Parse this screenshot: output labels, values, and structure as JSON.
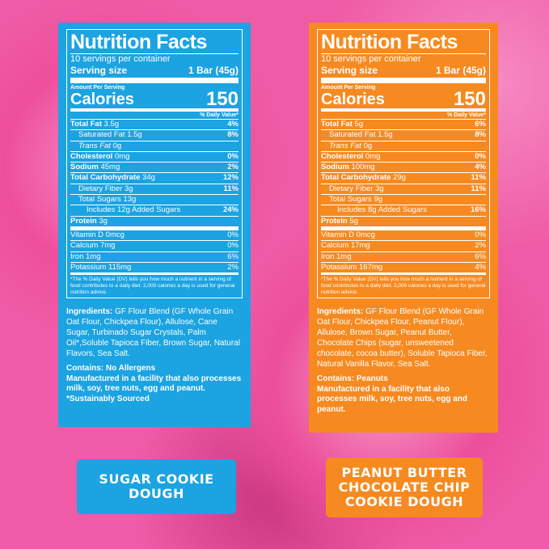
{
  "colors": {
    "blue": "#1ba3e2",
    "orange": "#f68a20",
    "background": "#ef5ba6"
  },
  "panels": [
    {
      "title": "Nutrition Facts",
      "servings": "10 servings per container",
      "serving_label": "Serving size",
      "serving_value": "1 Bar (45g)",
      "amount_per": "Amount Per Serving",
      "calories_label": "Calories",
      "calories": "150",
      "dv_header": "% Daily Value*",
      "rows": [
        {
          "name": "Total Fat",
          "amt": "3.5g",
          "dv": "4%",
          "bold": true,
          "cls": ""
        },
        {
          "name": "Saturated Fat",
          "amt": "1.5g",
          "dv": "8%",
          "cls": "ind"
        },
        {
          "name": "Trans Fat",
          "amt": "0g",
          "dv": "",
          "cls": "ind",
          "italic": true
        },
        {
          "name": "Cholesterol",
          "amt": "0mg",
          "dv": "0%",
          "bold": true,
          "cls": ""
        },
        {
          "name": "Sodium",
          "amt": "45mg",
          "dv": "2%",
          "bold": true,
          "cls": ""
        },
        {
          "name": "Total Carbohydrate",
          "amt": "34g",
          "dv": "12%",
          "bold": true,
          "cls": ""
        },
        {
          "name": "Dietary Fiber",
          "amt": "3g",
          "dv": "11%",
          "cls": "ind"
        },
        {
          "name": "Total Sugars",
          "amt": "13g",
          "dv": "",
          "cls": "ind"
        },
        {
          "name": "Includes 12g Added Sugars",
          "amt": "",
          "dv": "24%",
          "cls": "ind2"
        },
        {
          "name": "Protein",
          "amt": "3g",
          "dv": "",
          "bold": true,
          "cls": "thick"
        },
        {
          "name": "Vitamin D",
          "amt": "0mcg",
          "dv": "0%",
          "cls": "vit"
        },
        {
          "name": "Calcium",
          "amt": "7mg",
          "dv": "0%",
          "cls": "vit"
        },
        {
          "name": "Iron",
          "amt": "1mg",
          "dv": "6%",
          "cls": "vit"
        },
        {
          "name": "Potassium",
          "amt": "115mg",
          "dv": "2%",
          "cls": "vit last"
        }
      ],
      "footnote": "*The % Daily Value (DV) tells you how much a nutrient in a serving of food contributes to a daily diet. 2,000 calories a day is used for general nutrition advice.",
      "ingredients_label": "Ingredients:",
      "ingredients": " GF Flour Blend (GF Whole Grain Oat Flour, Chickpea Flour), Allulose, Cane Sugar, Turbinado Sugar Crystals, Palm Oil*,Soluble Tapioca Fiber, Brown Sugar, Natural Flavors, Sea Salt.",
      "contains": "Contains: No Allergens",
      "facility": "Manufactured in a facility that also processes milk, soy, tree nuts, egg and peanut.",
      "extra": "*Sustainably Sourced",
      "flavor": "SUGAR COOKIE DOUGH"
    },
    {
      "title": "Nutrition Facts",
      "servings": "10 servings per container",
      "serving_label": "Serving size",
      "serving_value": "1 Bar (45g)",
      "amount_per": "Amount Per Serving",
      "calories_label": "Calories",
      "calories": "150",
      "dv_header": "% Daily Value*",
      "rows": [
        {
          "name": "Total Fat",
          "amt": "5g",
          "dv": "6%",
          "bold": true,
          "cls": ""
        },
        {
          "name": "Saturated Fat",
          "amt": "1.5g",
          "dv": "8%",
          "cls": "ind"
        },
        {
          "name": "Trans Fat",
          "amt": "0g",
          "dv": "",
          "cls": "ind",
          "italic": true
        },
        {
          "name": "Cholesterol",
          "amt": "0mg",
          "dv": "0%",
          "bold": true,
          "cls": ""
        },
        {
          "name": "Sodium",
          "amt": "100mg",
          "dv": "4%",
          "bold": true,
          "cls": ""
        },
        {
          "name": "Total Carbohydrate",
          "amt": "29g",
          "dv": "11%",
          "bold": true,
          "cls": ""
        },
        {
          "name": "Dietary Fiber",
          "amt": "3g",
          "dv": "11%",
          "cls": "ind"
        },
        {
          "name": "Total Sugars",
          "amt": "9g",
          "dv": "",
          "cls": "ind"
        },
        {
          "name": "Includes 8g Added Sugars",
          "amt": "",
          "dv": "16%",
          "cls": "ind2"
        },
        {
          "name": "Protein",
          "amt": "5g",
          "dv": "",
          "bold": true,
          "cls": "thick"
        },
        {
          "name": "Vitamin D",
          "amt": "0mcg",
          "dv": "0%",
          "cls": "vit"
        },
        {
          "name": "Calcium",
          "amt": "17mg",
          "dv": "2%",
          "cls": "vit"
        },
        {
          "name": "Iron",
          "amt": "1mg",
          "dv": "6%",
          "cls": "vit"
        },
        {
          "name": "Potassium",
          "amt": "167mg",
          "dv": "4%",
          "cls": "vit last"
        }
      ],
      "footnote": "*The % Daily Value (DV) tells you how much a nutrient in a serving of food contributes to a daily diet. 2,000 calories a day is used for general nutrition advice.",
      "ingredients_label": "Ingredients:",
      "ingredients": " GF Flour Blend (GF Whole Grain Oat Flour, Chickpea Flour, Peanut Flour), Allulose, Brown Sugar, Peanut Butter, Chocolate Chips (sugar, unsweetened chocolate, cocoa butter), Soluble Tapioca Fiber, Natural Vanilla Flavor, Sea Salt.",
      "contains": "Contains: Peanuts",
      "facility": "Manufactured in a facility that also processes milk, soy, tree nuts, egg and peanut.",
      "extra": "",
      "flavor": "PEANUT BUTTER CHOCOLATE CHIP COOKIE DOUGH"
    }
  ]
}
